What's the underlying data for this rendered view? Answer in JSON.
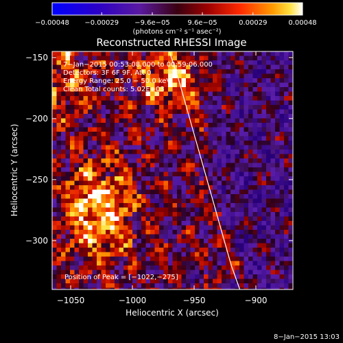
{
  "colorbar": {
    "tick_labels": [
      "−0.00048",
      "−0.00029",
      "−9.6e−05",
      "9.6e−05",
      "0.00029",
      "0.00048"
    ],
    "tick_values": [
      -0.00048,
      -0.00029,
      -9.6e-05,
      9.6e-05,
      0.00029,
      0.00048
    ],
    "range": [
      -0.00048,
      0.00048
    ],
    "units_label": "(photons cm⁻² s⁻¹ asec⁻²)"
  },
  "chart_data": {
    "type": "heatmap",
    "title": "Reconstructed RHESSI Image",
    "xlabel": "Heliocentric X (arcsec)",
    "ylabel": "Heliocentric Y (arcsec)",
    "xlim": [
      -1065,
      -870
    ],
    "ylim": [
      -340,
      -145
    ],
    "x_ticks": [
      -1050,
      -1000,
      -950,
      -900
    ],
    "y_ticks": [
      -300,
      -250,
      -200,
      -150
    ],
    "x_tick_labels": [
      "−1050",
      "−1000",
      "−950",
      "−900"
    ],
    "y_tick_labels": [
      "−300",
      "−250",
      "−200",
      "−150"
    ],
    "annotations": {
      "time_range": "7−Jan−2015 00:53:08.000 to 00:59:06.000",
      "detectors": "Detectors: 3F 6F 9F, Att 0",
      "energy_range": "Energy Range: 25.0 − 50.0 keV",
      "method": "Clean    Total counts: 5.02E+03",
      "peak": "Position of Peak = [−1022,−275]"
    },
    "limb_curve": {
      "x": [
        -970,
        -962,
        -955,
        -948,
        -941,
        -934,
        -927,
        -920,
        -913
      ],
      "y": [
        -145,
        -170,
        -195,
        -220,
        -245,
        -270,
        -295,
        -320,
        -340
      ]
    },
    "colormap": "red-temperature (blue negative, white positive)"
  },
  "footer": {
    "timestamp": "8−Jan−2015 13:03"
  }
}
